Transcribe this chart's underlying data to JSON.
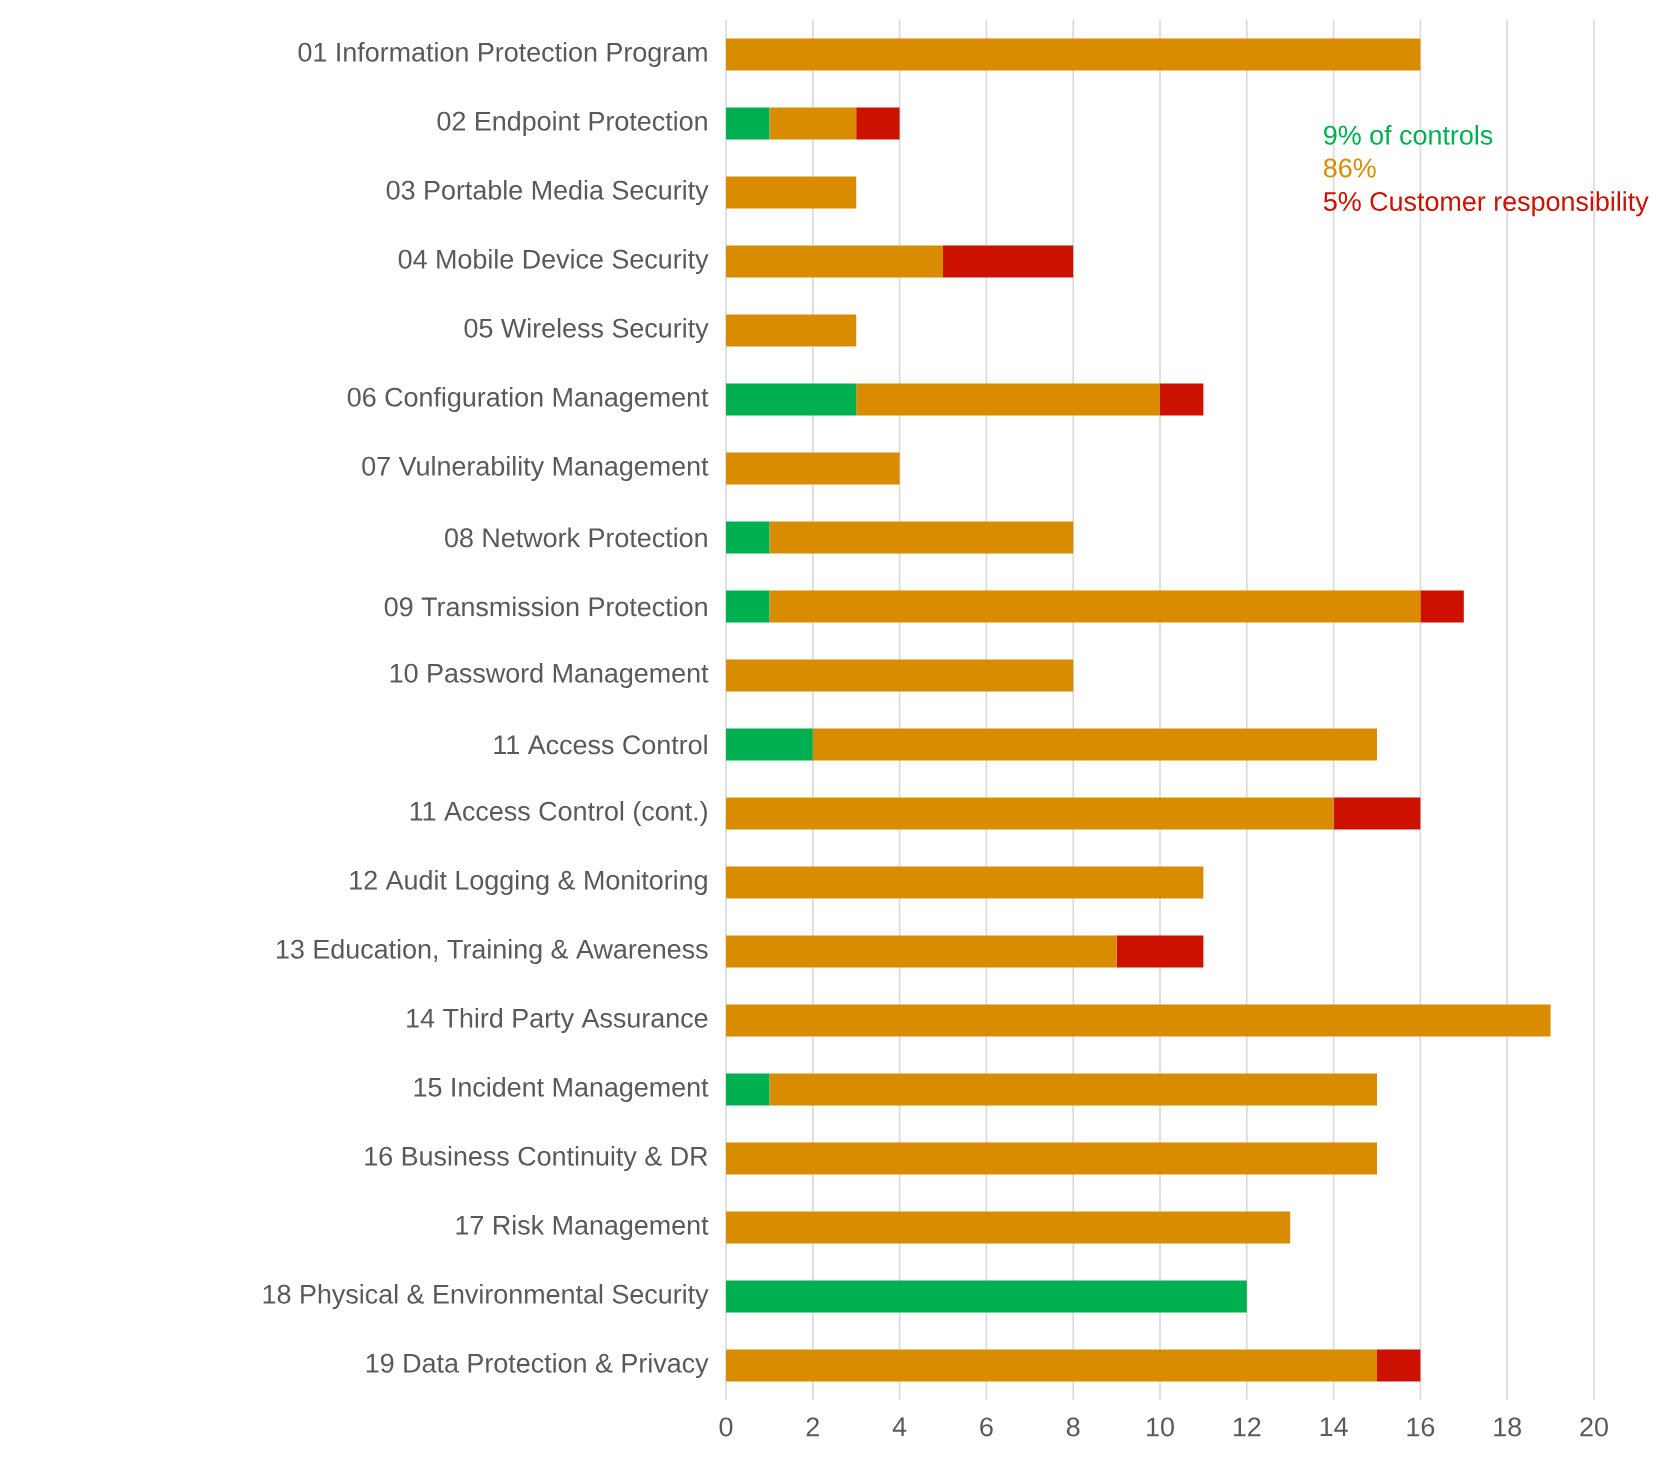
{
  "chart_data": {
    "type": "bar",
    "orientation": "horizontal",
    "stacked": true,
    "categories": [
      "01 Information Protection Program",
      "02 Endpoint Protection",
      "03 Portable Media Security",
      "04 Mobile Device Security",
      "05 Wireless Security",
      "06 Configuration Management",
      "07 Vulnerability Management",
      "08 Network Protection",
      "09 Transmission Protection",
      "10 Password Management",
      "11 Access Control",
      "11 Access Control (cont.)",
      "12 Audit Logging & Monitoring",
      "13 Education, Training & Awareness",
      "14 Third Party Assurance",
      "15 Incident Management",
      "16 Business Continuity & DR",
      "17 Risk Management",
      "18 Physical & Environmental Security",
      "19 Data Protection & Privacy"
    ],
    "series": [
      {
        "name": "9% of controls",
        "color": "#00b050",
        "values": [
          0,
          1,
          0,
          0,
          0,
          3,
          0,
          1,
          1,
          0,
          2,
          0,
          0,
          0,
          0,
          1,
          0,
          0,
          12,
          0
        ]
      },
      {
        "name": "86%",
        "color": "#d98c00",
        "values": [
          16,
          2,
          3,
          5,
          3,
          7,
          4,
          7,
          15,
          8,
          13,
          14,
          11,
          9,
          19,
          14,
          15,
          13,
          0,
          15
        ]
      },
      {
        "name": "5% Customer responsibility",
        "color": "#cc1100",
        "values": [
          0,
          1,
          0,
          3,
          0,
          1,
          0,
          0,
          1,
          0,
          0,
          2,
          0,
          2,
          0,
          0,
          0,
          0,
          0,
          1
        ]
      }
    ],
    "xlim": [
      0,
      20
    ],
    "xticks": [
      0,
      2,
      4,
      6,
      8,
      10,
      12,
      14,
      16,
      18,
      20
    ],
    "grid": "x",
    "legend": "top right"
  }
}
